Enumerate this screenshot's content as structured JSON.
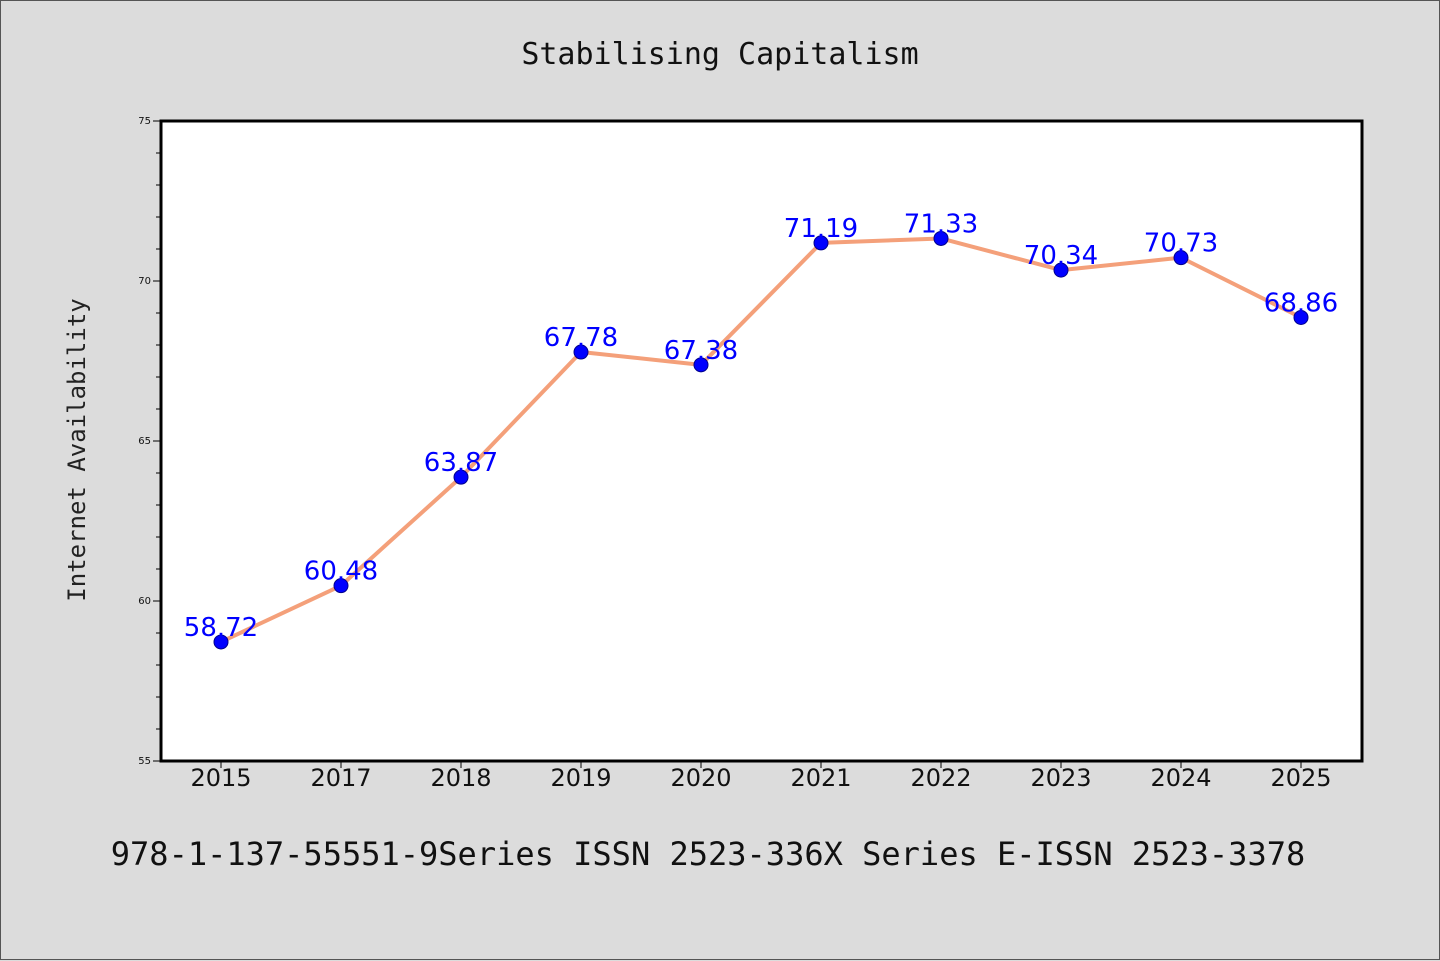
{
  "chart_data": {
    "type": "line",
    "title": "Stabilising Capitalism",
    "xlabel": "",
    "ylabel": "Internet Availability",
    "categories": [
      "2015",
      "2017",
      "2018",
      "2019",
      "2020",
      "2021",
      "2022",
      "2023",
      "2024",
      "2025"
    ],
    "series": [
      {
        "values": [
          58.72,
          60.48,
          63.87,
          67.78,
          67.38,
          71.19,
          71.33,
          70.34,
          70.73,
          68.86
        ],
        "line_color": "#f4a07a",
        "marker_color": "#0000ff"
      }
    ],
    "data_labels": [
      "58.72",
      "60.48",
      "63.87",
      "67.78",
      "67.38",
      "71.19",
      "71.33",
      "70.34",
      "70.73",
      "68.86"
    ],
    "yticks": [
      "55",
      "60",
      "65",
      "70",
      "75"
    ],
    "ylim": [
      55,
      75
    ],
    "grid": false,
    "data_label_color": "#0000ff"
  },
  "footer": "978-1-137-55551-9Series ISSN 2523-336X Series E-ISSN 2523-3378"
}
